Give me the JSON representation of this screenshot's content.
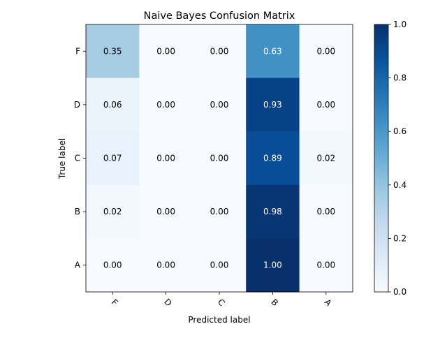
{
  "chart_data": {
    "type": "heatmap",
    "title": "Naive Bayes Confusion Matrix",
    "xlabel": "Predicted label",
    "ylabel": "True label",
    "x_categories": [
      "F",
      "D",
      "C",
      "B",
      "A"
    ],
    "y_categories": [
      "F",
      "D",
      "C",
      "B",
      "A"
    ],
    "values": [
      [
        0.35,
        0.0,
        0.0,
        0.63,
        0.0
      ],
      [
        0.06,
        0.0,
        0.0,
        0.93,
        0.0
      ],
      [
        0.07,
        0.0,
        0.0,
        0.89,
        0.02
      ],
      [
        0.02,
        0.0,
        0.0,
        0.98,
        0.0
      ],
      [
        0.0,
        0.0,
        0.0,
        1.0,
        0.0
      ]
    ],
    "colormap": "Blues",
    "colorbar": {
      "range": [
        0.0,
        1.0
      ],
      "ticks": [
        "0.0",
        "0.2",
        "0.4",
        "0.6",
        "0.8",
        "1.0"
      ]
    }
  }
}
